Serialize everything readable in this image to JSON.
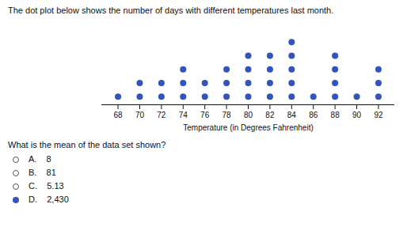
{
  "chart_data": {
    "type": "dot",
    "title": "The dot plot below shows the number of days with different temperatures last month.",
    "xlabel": "Temperature (in Degrees Fahrenheit)",
    "x": [
      68,
      70,
      72,
      74,
      76,
      78,
      80,
      82,
      84,
      86,
      88,
      90,
      92
    ],
    "values": [
      1,
      2,
      2,
      3,
      2,
      3,
      4,
      4,
      5,
      1,
      4,
      1,
      3
    ],
    "color": "#3355bb",
    "xlim": [
      66.5,
      93.5
    ],
    "xticks": [
      68,
      70,
      72,
      74,
      76,
      78,
      80,
      82,
      84,
      86,
      88,
      90,
      92
    ],
    "ylim": [
      0.4,
      6.2
    ],
    "tick_labels": "x",
    "grid": false,
    "annotations": [
      {
        "text": "What is the mean of the data set shown?"
      },
      {
        "text": "A.    8",
        "marker": "circle_open",
        "color": "#555555"
      },
      {
        "text": "B.    81",
        "marker": "circle_open",
        "color": "#555555"
      },
      {
        "text": "C.    5.13",
        "marker": "circle_open",
        "color": "#555555"
      },
      {
        "text": "D.    2,430",
        "marker": "circle_filled",
        "color": "#3355bb"
      }
    ]
  }
}
